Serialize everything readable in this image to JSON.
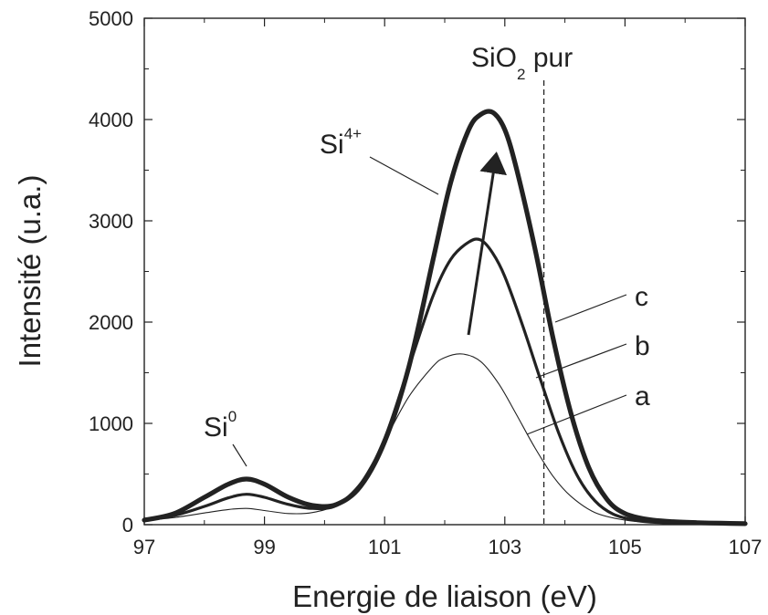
{
  "chart_data": {
    "type": "line",
    "title": "",
    "xlabel": "Energie de liaison (eV)",
    "ylabel": "Intensité (u.a.)",
    "xlim": [
      97,
      107
    ],
    "ylim": [
      0,
      5000
    ],
    "xticks": [
      97,
      99,
      101,
      103,
      105,
      107
    ],
    "yticks": [
      0,
      1000,
      2000,
      3000,
      4000,
      5000
    ],
    "xtick_labels": [
      "97",
      "99",
      "101",
      "103",
      "105",
      "107"
    ],
    "ytick_labels": [
      "0",
      "1000",
      "2000",
      "3000",
      "4000",
      "5000"
    ],
    "grid": false,
    "series": [
      {
        "name": "a",
        "x": [
          97.0,
          97.5,
          98.0,
          98.4,
          98.7,
          99.0,
          99.4,
          99.8,
          100.2,
          100.6,
          101.0,
          101.4,
          101.8,
          102.0,
          102.3,
          102.6,
          102.9,
          103.2,
          103.5,
          103.8,
          104.1,
          104.5,
          105.0,
          105.5,
          106.0,
          106.5,
          107.0
        ],
        "y": [
          40,
          70,
          115,
          150,
          160,
          140,
          110,
          120,
          200,
          420,
          830,
          1260,
          1560,
          1650,
          1685,
          1610,
          1390,
          1080,
          760,
          480,
          280,
          120,
          45,
          20,
          12,
          10,
          8
        ]
      },
      {
        "name": "b",
        "x": [
          97.0,
          97.5,
          98.0,
          98.4,
          98.7,
          99.0,
          99.4,
          99.8,
          100.2,
          100.6,
          101.0,
          101.4,
          101.8,
          102.1,
          102.4,
          102.6,
          102.8,
          103.0,
          103.3,
          103.6,
          103.9,
          104.2,
          104.5,
          104.8,
          105.2,
          105.6,
          106.0,
          106.5,
          107.0
        ],
        "y": [
          45,
          90,
          180,
          265,
          300,
          270,
          200,
          160,
          190,
          390,
          850,
          1550,
          2250,
          2620,
          2790,
          2810,
          2680,
          2450,
          1960,
          1420,
          900,
          490,
          235,
          105,
          40,
          20,
          14,
          10,
          8
        ]
      },
      {
        "name": "c",
        "x": [
          97.0,
          97.5,
          98.0,
          98.4,
          98.7,
          99.0,
          99.4,
          99.8,
          100.2,
          100.6,
          101.0,
          101.4,
          101.8,
          102.1,
          102.4,
          102.6,
          102.8,
          103.0,
          103.2,
          103.5,
          103.8,
          104.1,
          104.4,
          104.7,
          105.0,
          105.4,
          105.8,
          106.2,
          106.6,
          107.0
        ],
        "y": [
          45,
          110,
          270,
          400,
          450,
          400,
          270,
          190,
          200,
          380,
          820,
          1550,
          2600,
          3380,
          3900,
          4050,
          4070,
          3900,
          3500,
          2730,
          1850,
          1100,
          560,
          250,
          110,
          50,
          30,
          20,
          14,
          10
        ]
      }
    ],
    "annotations": {
      "si0_label": "Si",
      "si0_sup": "0",
      "si4_label": "Si",
      "si4_sup": "4+",
      "sio2_label": "SiO",
      "sio2_sub": "2",
      "sio2_suffix": " pur",
      "sio2_reference_energy": 103.65,
      "label_a": "a",
      "label_b": "b",
      "label_c": "c"
    }
  }
}
